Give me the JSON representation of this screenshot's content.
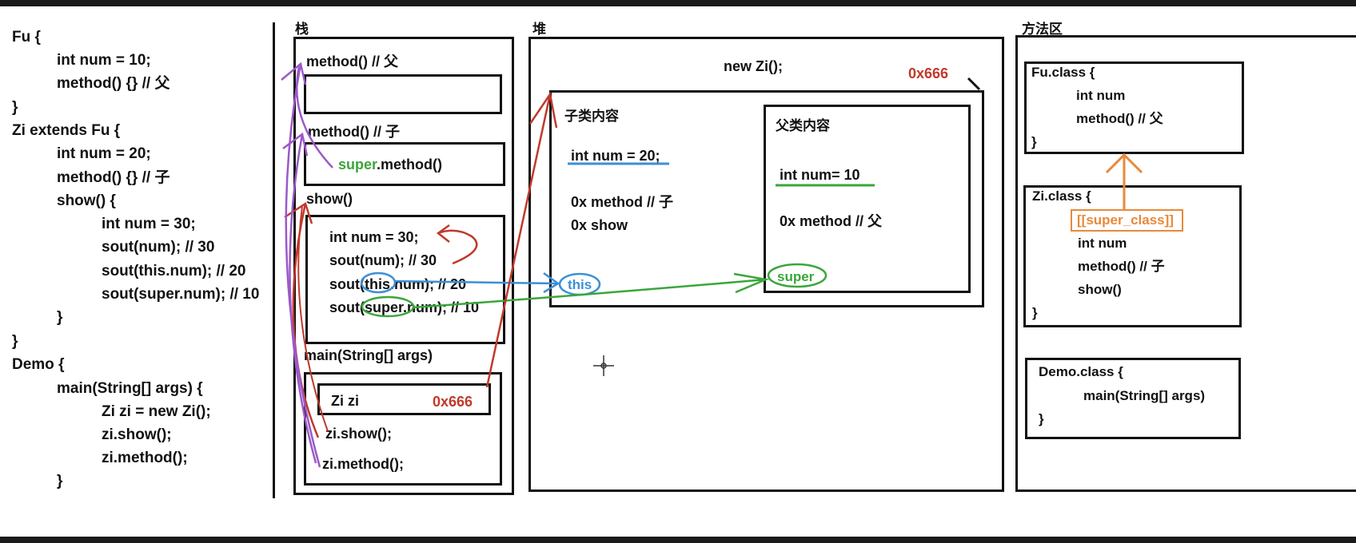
{
  "code_panel": {
    "lines": [
      "Fu {",
      "int num = 10;",
      "method() {} // 父",
      "}",
      "Zi extends Fu {",
      "int num = 20;",
      "method() {} // 子",
      "show() {",
      "int num = 30;",
      "sout(num); // 30",
      "sout(this.num); // 20",
      "sout(super.num); // 10",
      "}",
      "}",
      "Demo {",
      "main(String[] args) {",
      "Zi zi = new Zi();",
      "zi.show();",
      "zi.method();",
      "}"
    ]
  },
  "stack": {
    "title": "栈",
    "frame_method_fu": "method() // 父",
    "frame_method_zi": "method() // 子",
    "super_keyword": "super",
    "super_call_rest": ".method()",
    "frame_show": "show()",
    "show_lines": [
      "int num = 30;",
      "sout(num); // 30",
      "sout(this.num); // 20",
      "sout(super.num); // 10"
    ],
    "frame_main": "main(String[] args)",
    "zi_var": "Zi zi",
    "zi_addr": "0x666",
    "zi_show": "zi.show();",
    "zi_method": "zi.method();"
  },
  "heap": {
    "title": "堆",
    "new_label": "new Zi();",
    "address": "0x666",
    "child_title": "子类内容",
    "child_num": "int num = 20;",
    "child_method": "0x method // 子",
    "child_show": "0x show",
    "this_label": "this",
    "parent_title": "父类内容",
    "parent_num": "int num= 10",
    "parent_method": "0x method // 父",
    "super_label": "super"
  },
  "method_area": {
    "title": "方法区",
    "fu_class": [
      "Fu.class {",
      "int num",
      "method() // 父",
      "}"
    ],
    "zi_class_open": "Zi.class {",
    "super_class_ref": "[[super_class]]",
    "zi_class_rest": [
      "int num",
      "method() // 子",
      "show()",
      "}"
    ],
    "demo_class": [
      "Demo.class {",
      "main(String[] args)",
      "}"
    ]
  },
  "colors": {
    "red": "#c0392b",
    "green": "#3aa63a",
    "blue": "#3c8fd6",
    "purple": "#9b59c9",
    "orange": "#e8893a"
  }
}
